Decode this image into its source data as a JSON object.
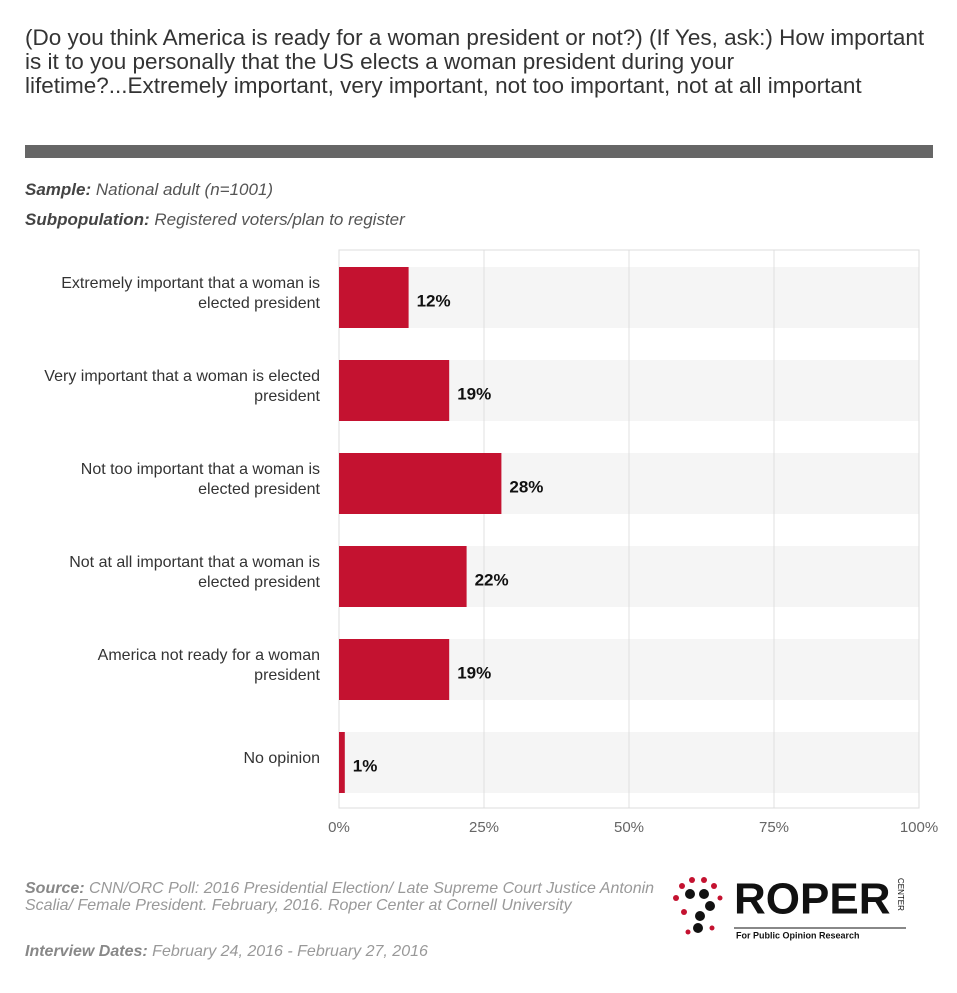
{
  "header": {
    "title": "(Do you think America is ready for a woman president or not?) (If Yes, ask:) How important is it to you personally that the US elects a woman president during your lifetime?...Extremely important, very important, not too important, not at all important",
    "sample_label": "Sample:",
    "sample": "National adult (n=1001)",
    "subpopulation_label": "Subpopulation:",
    "subpopulation": "Registered voters/plan to register"
  },
  "chart_data": {
    "type": "bar",
    "orientation": "horizontal",
    "categories": [
      "Extremely important that a woman is elected president",
      "Very important that a woman is elected president",
      "Not too important that a woman is elected president",
      "Not at all important that a woman is elected president",
      "America not ready for a woman president",
      "No opinion"
    ],
    "values": [
      12,
      19,
      28,
      22,
      19,
      1
    ],
    "value_labels": [
      "12%",
      "19%",
      "28%",
      "22%",
      "19%",
      "1%"
    ],
    "color": "#c41230",
    "xlim": [
      0,
      100
    ],
    "xticks": [
      {
        "value": 0,
        "label": "0%"
      },
      {
        "value": 25,
        "label": "25%"
      },
      {
        "value": 50,
        "label": "50%"
      },
      {
        "value": 75,
        "label": "75%"
      },
      {
        "value": 100,
        "label": "100%"
      }
    ],
    "grid": true
  },
  "footer": {
    "source_label": "Source:",
    "source": "CNN/ORC Poll: 2016 Presidential Election/ Late Supreme Court Justice Antonin Scalia/ Female President. February, 2016. Roper Center at Cornell University",
    "dates_label": "Interview Dates:",
    "dates": "February 24, 2016 - February 27, 2016",
    "logo_name": "ROPER",
    "logo_side": "CENTER",
    "logo_tagline": "For Public Opinion Research"
  }
}
